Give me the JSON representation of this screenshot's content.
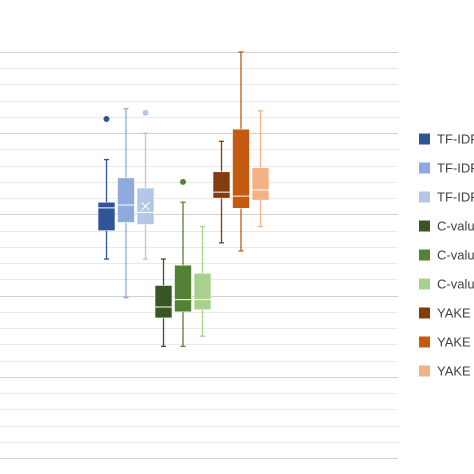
{
  "chart_data": {
    "type": "box",
    "title": "",
    "xlabel": "",
    "ylabel": "",
    "ylim": [
      0,
      1
    ],
    "grid": true,
    "legend_position": "right",
    "series": [
      {
        "name": "TF-IDF",
        "legend_text": "TF-IDF",
        "color": "#2F5597",
        "group": 0,
        "min": 0.49,
        "q1": 0.56,
        "median": 0.616,
        "q3": 0.63,
        "max": 0.735,
        "mean": null,
        "outliers": [
          0.835
        ]
      },
      {
        "name": "TF-IDF",
        "legend_text": "TF-IDF",
        "color": "#8FAADC",
        "group": 0,
        "min": 0.395,
        "q1": 0.58,
        "median": 0.623,
        "q3": 0.69,
        "max": 0.86,
        "mean": null,
        "outliers": []
      },
      {
        "name": "TF-IDF",
        "legend_text": "TF-IDF",
        "color": "#B4C7E7",
        "group": 0,
        "min": 0.49,
        "q1": 0.575,
        "median": 0.605,
        "q3": 0.665,
        "max": 0.8,
        "mean": 0.62,
        "outliers": [
          0.85
        ]
      },
      {
        "name": "C-value",
        "legend_text": "C-valu",
        "color": "#375623",
        "group": 1,
        "min": 0.275,
        "q1": 0.345,
        "median": 0.372,
        "q3": 0.425,
        "max": 0.49,
        "mean": null,
        "outliers": []
      },
      {
        "name": "C-value",
        "legend_text": "C-valu",
        "color": "#548235",
        "group": 1,
        "min": 0.275,
        "q1": 0.36,
        "median": 0.39,
        "q3": 0.475,
        "max": 0.63,
        "mean": null,
        "outliers": [
          0.68
        ]
      },
      {
        "name": "C-value",
        "legend_text": "C-valu",
        "color": "#A9D18E",
        "group": 1,
        "min": 0.3,
        "q1": 0.365,
        "median": 0.39,
        "q3": 0.455,
        "max": 0.57,
        "mean": null,
        "outliers": []
      },
      {
        "name": "YAKE",
        "legend_text": "YAKE F",
        "color": "#843C0C",
        "group": 2,
        "min": 0.53,
        "q1": 0.64,
        "median": 0.655,
        "q3": 0.705,
        "max": 0.78,
        "mean": null,
        "outliers": []
      },
      {
        "name": "YAKE",
        "legend_text": "YAKE F",
        "color": "#C55A11",
        "group": 2,
        "min": 0.51,
        "q1": 0.615,
        "median": 0.645,
        "q3": 0.81,
        "max": 1.0,
        "mean": null,
        "outliers": []
      },
      {
        "name": "YAKE",
        "legend_text": "YAKE F",
        "color": "#F4B183",
        "group": 2,
        "min": 0.57,
        "q1": 0.635,
        "median": 0.66,
        "q3": 0.715,
        "max": 0.855,
        "mean": null,
        "outliers": []
      }
    ]
  }
}
